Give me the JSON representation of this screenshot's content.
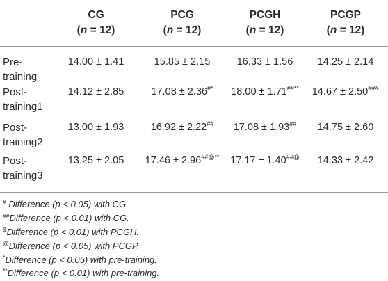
{
  "columns": [
    {
      "name": "CG",
      "n_prefix": "(",
      "n_var": "n",
      "n_value": " = 12)"
    },
    {
      "name": "PCG",
      "n_prefix": "(",
      "n_var": "n",
      "n_value": " = 12)"
    },
    {
      "name": "PCGH",
      "n_prefix": "(",
      "n_var": "n",
      "n_value": " = 12)"
    },
    {
      "name": "PCGP",
      "n_prefix": "(",
      "n_var": "n",
      "n_value": " = 12)"
    }
  ],
  "rows": [
    {
      "label1": "Pre-",
      "label2": "training",
      "cells": [
        {
          "v": "14.00 ± 1.41",
          "s": ""
        },
        {
          "v": "15.85 ± 2.15",
          "s": ""
        },
        {
          "v": "16.33 ± 1.56",
          "s": ""
        },
        {
          "v": "14.25 ± 2.14",
          "s": ""
        }
      ]
    },
    {
      "label1": "Post-",
      "label2": "training1",
      "cells": [
        {
          "v": "14.12 ± 2.85",
          "s": ""
        },
        {
          "v": "17.08 ± 2.36",
          "s": "#*"
        },
        {
          "v": "18.00 ± 1.71",
          "s": "##**"
        },
        {
          "v": "14.67 ± 2.50",
          "s": "##&"
        }
      ]
    },
    {
      "label1": "Post-",
      "label2": "training2",
      "cells": [
        {
          "v": "13.00 ± 1.93",
          "s": ""
        },
        {
          "v": "16.92 ± 2.22",
          "s": "##"
        },
        {
          "v": "17.08 ± 1.93",
          "s": "##"
        },
        {
          "v": "14.75 ± 2.60",
          "s": ""
        }
      ]
    },
    {
      "label1": "Post-",
      "label2": "training3",
      "cells": [
        {
          "v": "13.25 ± 2.05",
          "s": ""
        },
        {
          "v": "17.46 ± 2.96",
          "s": "##@**"
        },
        {
          "v": "17.17 ± 1.40",
          "s": "##@"
        },
        {
          "v": "14.33 ± 2.42",
          "s": ""
        }
      ]
    }
  ],
  "footnotes": [
    {
      "sym": "#",
      "text": " Difference (p < 0.05) with CG."
    },
    {
      "sym": "##",
      "text": "Difference (p < 0.01) with CG."
    },
    {
      "sym": "&",
      "text": "Difference (p < 0.01) with PCGH."
    },
    {
      "sym": "@",
      "text": "Difference (p < 0.05) with PCGP."
    },
    {
      "sym": "*",
      "text": "Difference (p < 0.05) with pre-training."
    },
    {
      "sym": "**",
      "text": "Difference (p < 0.01) with pre-training."
    }
  ]
}
